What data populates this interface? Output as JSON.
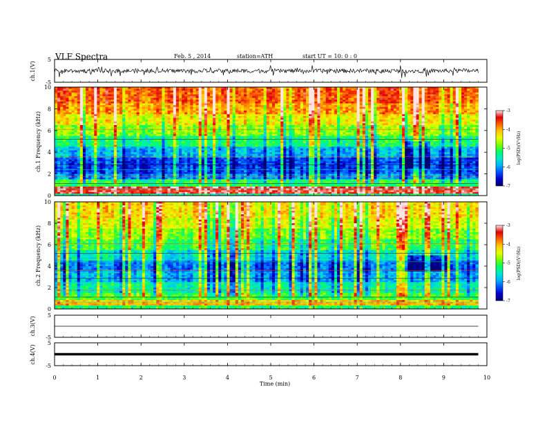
{
  "header": {
    "title": "VLF  Spectra",
    "date": "Feb. 5  , 2014",
    "station": "station=ATH",
    "start": "start  UT =   10: 0  : 0"
  },
  "colormap_stops": [
    "#000070",
    "#0000c8",
    "#0050ff",
    "#00b4ff",
    "#00e8c8",
    "#00ff64",
    "#7cff00",
    "#e8ff00",
    "#ffc800",
    "#ff6400",
    "#e00000",
    "#ffe4e4"
  ],
  "chart_data": [
    {
      "type": "line",
      "id": "ch1-wave",
      "ylabel": "ch.1(V)",
      "ylim": [
        -5,
        5
      ],
      "yticks": [
        "5",
        "-5"
      ],
      "xlim": [
        0,
        10
      ],
      "signal": "noisy waveform centred near 0 V, typical amplitude about ±1.5 V with spikes toward ±3 V",
      "baseline_v": 0
    },
    {
      "type": "heatmap",
      "id": "ch1-spec",
      "ylabel": "ch.1 Frequency  (kHz)",
      "ylim": [
        0,
        10
      ],
      "yticks": [
        "0",
        "2",
        "4",
        "6",
        "8",
        "10"
      ],
      "xlim": [
        0,
        10
      ],
      "data_end_min": 9.8,
      "colorbar": {
        "label": "log(PSD)(V²/Hz)",
        "range": [
          -7,
          -3
        ],
        "ticks": [
          "-3",
          "-4",
          "-5",
          "-6",
          "-7"
        ]
      },
      "bands": [
        {
          "from_khz": 0.0,
          "to_khz": 0.25,
          "level": 0.4
        },
        {
          "from_khz": 0.25,
          "to_khz": 0.9,
          "level": 0.93
        },
        {
          "from_khz": 0.9,
          "to_khz": 1.5,
          "level": 0.46
        },
        {
          "from_khz": 1.5,
          "to_khz": 2.0,
          "level": 0.24
        },
        {
          "from_khz": 2.0,
          "to_khz": 3.5,
          "level": 0.16
        },
        {
          "from_khz": 3.5,
          "to_khz": 4.5,
          "level": 0.28
        },
        {
          "from_khz": 4.5,
          "to_khz": 5.5,
          "level": 0.44
        },
        {
          "from_khz": 5.5,
          "to_khz": 6.5,
          "level": 0.56
        },
        {
          "from_khz": 6.5,
          "to_khz": 7.5,
          "level": 0.66
        },
        {
          "from_khz": 7.5,
          "to_khz": 8.5,
          "level": 0.76
        },
        {
          "from_khz": 8.5,
          "to_khz": 10.0,
          "level": 0.83
        }
      ],
      "dark_patch": {
        "t_from_min": 8.1,
        "t_to_min": 8.7,
        "f_from_khz": 2.5,
        "f_to_khz": 5.0
      }
    },
    {
      "type": "heatmap",
      "id": "ch2-spec",
      "ylabel": "ch.2 Frequency  (kHz)",
      "ylim": [
        0,
        10
      ],
      "yticks": [
        "0",
        "2",
        "4",
        "6",
        "8",
        "10"
      ],
      "xlim": [
        0,
        10
      ],
      "data_end_min": 9.8,
      "colorbar": {
        "label": "log(PSD)(V²/Hz)",
        "range": [
          -7,
          -3
        ],
        "ticks": [
          "-3",
          "-4",
          "-5",
          "-6",
          "-7"
        ]
      },
      "bands": [
        {
          "from_khz": 0.0,
          "to_khz": 0.3,
          "level": 0.45
        },
        {
          "from_khz": 0.3,
          "to_khz": 0.9,
          "level": 0.72
        },
        {
          "from_khz": 0.9,
          "to_khz": 1.5,
          "level": 0.5
        },
        {
          "from_khz": 1.5,
          "to_khz": 2.5,
          "level": 0.4
        },
        {
          "from_khz": 2.5,
          "to_khz": 3.5,
          "level": 0.28
        },
        {
          "from_khz": 3.5,
          "to_khz": 4.5,
          "level": 0.22
        },
        {
          "from_khz": 4.5,
          "to_khz": 5.5,
          "level": 0.36
        },
        {
          "from_khz": 5.5,
          "to_khz": 6.5,
          "level": 0.48
        },
        {
          "from_khz": 6.5,
          "to_khz": 7.5,
          "level": 0.56
        },
        {
          "from_khz": 7.5,
          "to_khz": 8.5,
          "level": 0.64
        },
        {
          "from_khz": 8.5,
          "to_khz": 10.0,
          "level": 0.7
        }
      ],
      "dark_patch": {
        "t_from_min": 8.1,
        "t_to_min": 9.1,
        "f_from_khz": 3.5,
        "f_to_khz": 5.0
      }
    },
    {
      "type": "line",
      "id": "ch3-wave",
      "ylabel": "ch.3(V)",
      "ylim": [
        -5,
        5
      ],
      "yticks": [
        "5",
        "-5"
      ],
      "xlim": [
        0,
        10
      ],
      "signal": "nearly flat trace",
      "baseline_v": 0
    },
    {
      "type": "line",
      "id": "ch4-wave",
      "ylabel": "ch.4(V)",
      "ylim": [
        -5,
        5
      ],
      "yticks": [
        "5",
        "-5"
      ],
      "xlim": [
        0,
        10
      ],
      "signal": "thick flat trace",
      "baseline_v": 0
    }
  ],
  "xaxis": {
    "label": "Time  (min)",
    "ticks": [
      "0",
      "1",
      "2",
      "3",
      "4",
      "5",
      "6",
      "7",
      "8",
      "9",
      "10"
    ],
    "range": [
      0,
      10
    ]
  }
}
